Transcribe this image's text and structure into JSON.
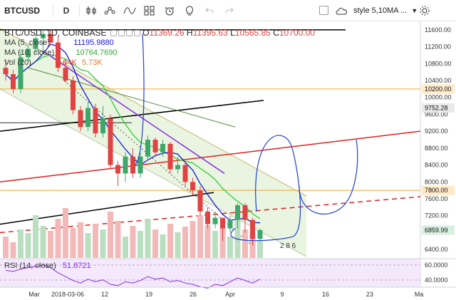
{
  "toolbar": {
    "symbol": "BTCUSD",
    "interval": "D",
    "template_label": "style 5,10MA ..."
  },
  "header": {
    "title": "BTC/USD, 1D, COINBASE",
    "o_label": "O",
    "o_value": "11369.26",
    "h_label": "H",
    "h_value": "11395.63",
    "l_label": "L",
    "l_value": "10565.85",
    "c_label": "C",
    "c_value": "10700.00"
  },
  "legend": {
    "ma5_label": "MA (5, close)",
    "ma5_value": "11195.9880",
    "ma10_label": "MA (10, close)",
    "ma10_value": "10764.7690",
    "vol_label": "Vol (20)",
    "vol_value1": "5.64K",
    "vol_value2": "5.73K",
    "rsi_label": "RSI (14, close)",
    "rsi_value": "51.8721"
  },
  "price_axis": {
    "ticks": [
      "11600.00",
      "11200.00",
      "10800.00",
      "10400.00",
      "10000.00",
      "9600.00",
      "9200.00",
      "8800.00",
      "8400.00",
      "8000.00",
      "7600.00",
      "7200.00",
      "6800.00",
      "6400.00"
    ],
    "tags": [
      {
        "text": "10200.00",
        "bg": "#ffe9c7",
        "price": 10200
      },
      {
        "text": "9752.28",
        "bg": "#e9e9e9",
        "price": 9752.28
      },
      {
        "text": "7800.00",
        "bg": "#ffe9c7",
        "price": 7800
      },
      {
        "text": "6859.99",
        "bg": "#d9f0e0",
        "price": 6859.99
      }
    ]
  },
  "rsi_axis": {
    "ticks": [
      "60.0000",
      "40.0000"
    ]
  },
  "time_axis": {
    "ticks": [
      "Mar",
      "2018-03-06",
      "12",
      "19",
      "26",
      "Apr",
      "9",
      "16",
      "23",
      "Ma"
    ]
  },
  "events_label": "2 8 6",
  "colors": {
    "up": "#3ea86b",
    "down": "#e04343",
    "ma5": "#1717d6",
    "ma10": "#33cc33",
    "channel_fill": "#e4f2da",
    "support": "#f5a623",
    "trend": "#8a2be2"
  },
  "chart_data": {
    "type": "candlestick",
    "series": [
      {
        "name": "BTC/USD",
        "ohlc": [
          [
            10700,
            10900,
            10400,
            10550
          ],
          [
            10550,
            10650,
            10100,
            10200
          ],
          [
            10200,
            11100,
            10100,
            10950
          ],
          [
            10950,
            11250,
            10850,
            11150
          ],
          [
            11150,
            11500,
            11050,
            11400
          ],
          [
            11400,
            11600,
            11100,
            11500
          ],
          [
            11500,
            11600,
            11250,
            11300
          ],
          [
            11300,
            11450,
            10600,
            10700
          ],
          [
            10700,
            10900,
            10350,
            10400
          ],
          [
            10400,
            10500,
            9600,
            9700
          ],
          [
            9700,
            9800,
            9200,
            9300
          ],
          [
            9300,
            9900,
            9200,
            9750
          ],
          [
            9750,
            9850,
            9050,
            9150
          ],
          [
            9150,
            9800,
            9050,
            9500
          ],
          [
            9500,
            9600,
            8300,
            8400
          ],
          [
            8400,
            8500,
            7900,
            8200
          ],
          [
            8200,
            8700,
            8000,
            8600
          ],
          [
            8600,
            8800,
            8100,
            8200
          ],
          [
            8200,
            8700,
            8100,
            8600
          ],
          [
            8600,
            9100,
            8500,
            9000
          ],
          [
            9000,
            9050,
            8600,
            8700
          ],
          [
            8700,
            9000,
            8600,
            8900
          ],
          [
            8900,
            8950,
            8200,
            8300
          ],
          [
            8300,
            8600,
            8200,
            8400
          ],
          [
            8400,
            8500,
            7900,
            8000
          ],
          [
            8000,
            8100,
            7700,
            7800
          ],
          [
            7800,
            7900,
            7200,
            7300
          ],
          [
            7300,
            7400,
            6900,
            7000
          ],
          [
            7000,
            7300,
            6900,
            7150
          ],
          [
            7150,
            7100,
            6600,
            6900
          ],
          [
            6900,
            7200,
            6800,
            7100
          ],
          [
            7100,
            7500,
            6900,
            7450
          ],
          [
            7450,
            7500,
            6800,
            7100
          ],
          [
            7100,
            7150,
            6500,
            6650
          ],
          [
            6650,
            6900,
            6600,
            6860
          ]
        ]
      }
    ],
    "ylim": [
      6200,
      11800
    ]
  }
}
